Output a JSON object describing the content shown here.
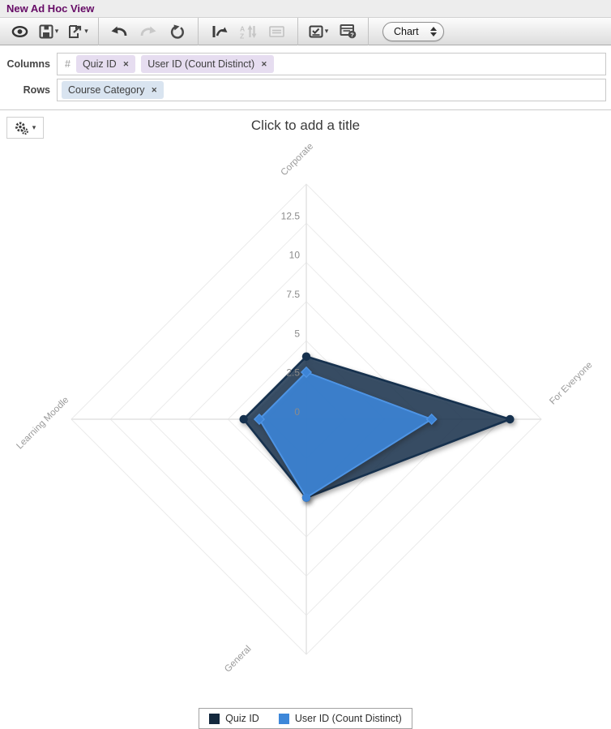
{
  "window": {
    "title": "New Ad Hoc View"
  },
  "glyphs": {
    "caret": "▾",
    "remove": "✕"
  },
  "toolbar": {
    "view_select_value": "Chart"
  },
  "fields": {
    "columns_label": "Columns",
    "columns_prefix": "#",
    "columns_tokens": [
      "Quiz ID",
      "User ID (Count Distinct)"
    ],
    "rows_label": "Rows",
    "rows_tokens": [
      "Course Category"
    ]
  },
  "chart": {
    "title_placeholder": "Click to add a title"
  },
  "chart_data": {
    "type": "radar",
    "title": "Click to add a title",
    "categories": [
      "Corporate",
      "For Everyone",
      "General",
      "Learning Moodle"
    ],
    "series": [
      {
        "name": "Quiz ID",
        "values": [
          4,
          13,
          5,
          4
        ],
        "color": "#16314e",
        "edge": "#16314e",
        "fill_opacity": 0.8,
        "marker": "circle"
      },
      {
        "name": "User ID (Count Distinct)",
        "values": [
          3,
          8,
          5,
          3
        ],
        "color": "#3d84d6",
        "edge": "#4e94e4",
        "fill_opacity": 0.92,
        "marker": "diamond"
      }
    ],
    "axis_ticks": [
      0,
      2.5,
      5,
      7.5,
      10,
      12.5
    ],
    "axis_max": 15,
    "rings": 6,
    "grid": true,
    "legend_position": "bottom",
    "legend_colors": [
      "#14293e",
      "#3d87d9"
    ]
  }
}
